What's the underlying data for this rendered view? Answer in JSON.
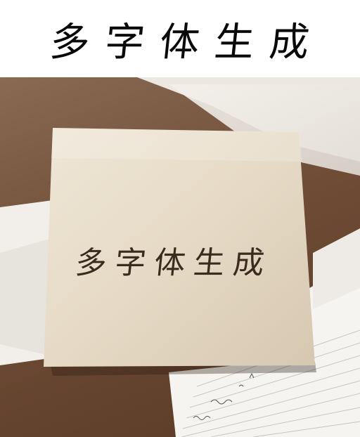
{
  "header": {
    "title": "多字体生成"
  },
  "card": {
    "text": "多字体生成"
  },
  "colors": {
    "background": "#ffffff",
    "desk": "#6e4c36",
    "card": "#e9dfcf",
    "ink": "#3b2a1e"
  }
}
